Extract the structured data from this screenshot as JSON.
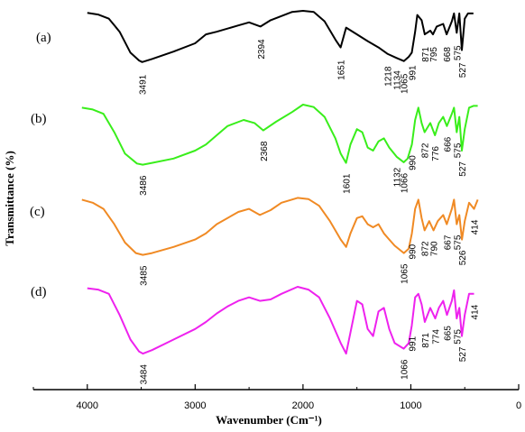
{
  "chart_data": {
    "type": "line",
    "xlabel": "Wavenumber (Cm⁻¹)",
    "ylabel": "Transmittance (%)",
    "xlim": [
      4500,
      0
    ],
    "x_ticks": [
      4000,
      3000,
      2000,
      1000,
      0
    ],
    "x_tick_labels": [
      "4000",
      "3000",
      "2000",
      "1000",
      "0"
    ],
    "grid": false,
    "legend": "none",
    "series": [
      {
        "name": "(a)",
        "color": "#000000",
        "offset": 0,
        "points": [
          [
            4000,
            0.96
          ],
          [
            3900,
            0.93
          ],
          [
            3800,
            0.85
          ],
          [
            3700,
            0.6
          ],
          [
            3600,
            0.2
          ],
          [
            3520,
            0.05
          ],
          [
            3491,
            0.02
          ],
          [
            3400,
            0.08
          ],
          [
            3200,
            0.22
          ],
          [
            3000,
            0.38
          ],
          [
            2900,
            0.55
          ],
          [
            2800,
            0.6
          ],
          [
            2600,
            0.72
          ],
          [
            2500,
            0.78
          ],
          [
            2394,
            0.7
          ],
          [
            2300,
            0.82
          ],
          [
            2100,
            0.98
          ],
          [
            2000,
            1.0
          ],
          [
            1900,
            0.98
          ],
          [
            1800,
            0.8
          ],
          [
            1700,
            0.45
          ],
          [
            1651,
            0.3
          ],
          [
            1600,
            0.68
          ],
          [
            1500,
            0.55
          ],
          [
            1400,
            0.42
          ],
          [
            1300,
            0.3
          ],
          [
            1218,
            0.18
          ],
          [
            1134,
            0.1
          ],
          [
            1065,
            0.04
          ],
          [
            1020,
            0.12
          ],
          [
            991,
            0.2
          ],
          [
            960,
            0.6
          ],
          [
            940,
            0.92
          ],
          [
            900,
            0.82
          ],
          [
            871,
            0.55
          ],
          [
            820,
            0.62
          ],
          [
            795,
            0.55
          ],
          [
            760,
            0.7
          ],
          [
            700,
            0.75
          ],
          [
            668,
            0.55
          ],
          [
            620,
            0.8
          ],
          [
            600,
            0.95
          ],
          [
            575,
            0.58
          ],
          [
            550,
            0.95
          ],
          [
            527,
            0.25
          ],
          [
            500,
            0.85
          ],
          [
            470,
            0.95
          ],
          [
            420,
            0.95
          ]
        ],
        "peaks": [
          {
            "label": "3491",
            "x": 3491
          },
          {
            "label": "2394",
            "x": 2394
          },
          {
            "label": "1651",
            "x": 1651
          },
          {
            "label": "1218",
            "x": 1218
          },
          {
            "label": "1134",
            "x": 1134
          },
          {
            "label": "1065",
            "x": 1065
          },
          {
            "label": "991",
            "x": 991
          },
          {
            "label": "871",
            "x": 871
          },
          {
            "label": "795",
            "x": 795
          },
          {
            "label": "668",
            "x": 668
          },
          {
            "label": "575",
            "x": 575
          },
          {
            "label": "527",
            "x": 527
          }
        ]
      },
      {
        "name": "(b)",
        "color": "#39ee1b",
        "offset": 1,
        "points": [
          [
            4050,
            0.95
          ],
          [
            3950,
            0.92
          ],
          [
            3850,
            0.85
          ],
          [
            3750,
            0.55
          ],
          [
            3650,
            0.2
          ],
          [
            3540,
            0.04
          ],
          [
            3486,
            0.02
          ],
          [
            3400,
            0.05
          ],
          [
            3200,
            0.12
          ],
          [
            3000,
            0.25
          ],
          [
            2900,
            0.35
          ],
          [
            2800,
            0.5
          ],
          [
            2700,
            0.65
          ],
          [
            2550,
            0.75
          ],
          [
            2450,
            0.7
          ],
          [
            2368,
            0.58
          ],
          [
            2250,
            0.72
          ],
          [
            2100,
            0.88
          ],
          [
            2000,
            1.0
          ],
          [
            1900,
            0.96
          ],
          [
            1800,
            0.8
          ],
          [
            1700,
            0.45
          ],
          [
            1650,
            0.2
          ],
          [
            1601,
            0.05
          ],
          [
            1560,
            0.35
          ],
          [
            1500,
            0.6
          ],
          [
            1450,
            0.55
          ],
          [
            1400,
            0.3
          ],
          [
            1350,
            0.25
          ],
          [
            1300,
            0.4
          ],
          [
            1250,
            0.45
          ],
          [
            1200,
            0.3
          ],
          [
            1132,
            0.15
          ],
          [
            1066,
            0.06
          ],
          [
            1030,
            0.12
          ],
          [
            990,
            0.35
          ],
          [
            960,
            0.75
          ],
          [
            930,
            0.95
          ],
          [
            900,
            0.7
          ],
          [
            872,
            0.55
          ],
          [
            820,
            0.7
          ],
          [
            776,
            0.5
          ],
          [
            740,
            0.7
          ],
          [
            700,
            0.8
          ],
          [
            666,
            0.65
          ],
          [
            620,
            0.85
          ],
          [
            600,
            0.95
          ],
          [
            575,
            0.55
          ],
          [
            550,
            0.8
          ],
          [
            527,
            0.25
          ],
          [
            500,
            0.6
          ],
          [
            460,
            0.95
          ],
          [
            420,
            0.98
          ],
          [
            380,
            0.98
          ]
        ],
        "peaks": [
          {
            "label": "3486",
            "x": 3486
          },
          {
            "label": "2368",
            "x": 2368
          },
          {
            "label": "1601",
            "x": 1601
          },
          {
            "label": "1132",
            "x": 1132
          },
          {
            "label": "1066",
            "x": 1066
          },
          {
            "label": "990",
            "x": 990
          },
          {
            "label": "872",
            "x": 872
          },
          {
            "label": "776",
            "x": 776
          },
          {
            "label": "666",
            "x": 666
          },
          {
            "label": "575",
            "x": 575
          },
          {
            "label": "527",
            "x": 527
          }
        ]
      },
      {
        "name": "(c)",
        "color": "#f08a24",
        "offset": 2,
        "points": [
          [
            4050,
            0.95
          ],
          [
            3950,
            0.9
          ],
          [
            3850,
            0.8
          ],
          [
            3750,
            0.55
          ],
          [
            3650,
            0.25
          ],
          [
            3550,
            0.08
          ],
          [
            3485,
            0.05
          ],
          [
            3400,
            0.08
          ],
          [
            3200,
            0.18
          ],
          [
            3000,
            0.3
          ],
          [
            2900,
            0.4
          ],
          [
            2800,
            0.55
          ],
          [
            2600,
            0.75
          ],
          [
            2500,
            0.8
          ],
          [
            2400,
            0.7
          ],
          [
            2300,
            0.78
          ],
          [
            2200,
            0.9
          ],
          [
            2050,
            0.98
          ],
          [
            1950,
            0.96
          ],
          [
            1850,
            0.85
          ],
          [
            1750,
            0.6
          ],
          [
            1650,
            0.3
          ],
          [
            1600,
            0.18
          ],
          [
            1560,
            0.4
          ],
          [
            1500,
            0.65
          ],
          [
            1450,
            0.68
          ],
          [
            1400,
            0.55
          ],
          [
            1350,
            0.5
          ],
          [
            1300,
            0.55
          ],
          [
            1250,
            0.4
          ],
          [
            1200,
            0.3
          ],
          [
            1150,
            0.2
          ],
          [
            1065,
            0.08
          ],
          [
            1020,
            0.15
          ],
          [
            990,
            0.4
          ],
          [
            960,
            0.8
          ],
          [
            930,
            0.95
          ],
          [
            900,
            0.65
          ],
          [
            872,
            0.45
          ],
          [
            830,
            0.6
          ],
          [
            790,
            0.45
          ],
          [
            750,
            0.6
          ],
          [
            700,
            0.7
          ],
          [
            667,
            0.55
          ],
          [
            620,
            0.8
          ],
          [
            600,
            0.95
          ],
          [
            575,
            0.55
          ],
          [
            550,
            0.7
          ],
          [
            526,
            0.3
          ],
          [
            500,
            0.6
          ],
          [
            460,
            0.9
          ],
          [
            414,
            0.8
          ],
          [
            380,
            0.95
          ]
        ],
        "peaks": [
          {
            "label": "3485",
            "x": 3485
          },
          {
            "label": "1065",
            "x": 1065
          },
          {
            "label": "990",
            "x": 990
          },
          {
            "label": "872",
            "x": 872
          },
          {
            "label": "790",
            "x": 790
          },
          {
            "label": "667",
            "x": 667
          },
          {
            "label": "575",
            "x": 575
          },
          {
            "label": "526",
            "x": 526
          },
          {
            "label": "414",
            "x": 414
          }
        ]
      },
      {
        "name": "(d)",
        "color": "#ee22ee",
        "offset": 3,
        "points": [
          [
            4000,
            0.98
          ],
          [
            3900,
            0.96
          ],
          [
            3800,
            0.9
          ],
          [
            3700,
            0.6
          ],
          [
            3600,
            0.25
          ],
          [
            3520,
            0.08
          ],
          [
            3484,
            0.05
          ],
          [
            3400,
            0.1
          ],
          [
            3200,
            0.25
          ],
          [
            3000,
            0.4
          ],
          [
            2900,
            0.5
          ],
          [
            2800,
            0.62
          ],
          [
            2700,
            0.72
          ],
          [
            2600,
            0.8
          ],
          [
            2500,
            0.85
          ],
          [
            2400,
            0.8
          ],
          [
            2300,
            0.82
          ],
          [
            2200,
            0.9
          ],
          [
            2050,
            1.0
          ],
          [
            1950,
            0.96
          ],
          [
            1850,
            0.85
          ],
          [
            1750,
            0.55
          ],
          [
            1650,
            0.2
          ],
          [
            1600,
            0.05
          ],
          [
            1560,
            0.35
          ],
          [
            1500,
            0.8
          ],
          [
            1450,
            0.75
          ],
          [
            1400,
            0.4
          ],
          [
            1350,
            0.3
          ],
          [
            1300,
            0.65
          ],
          [
            1250,
            0.7
          ],
          [
            1200,
            0.4
          ],
          [
            1150,
            0.2
          ],
          [
            1066,
            0.12
          ],
          [
            1020,
            0.2
          ],
          [
            991,
            0.45
          ],
          [
            960,
            0.85
          ],
          [
            930,
            0.9
          ],
          [
            900,
            0.75
          ],
          [
            871,
            0.5
          ],
          [
            820,
            0.7
          ],
          [
            774,
            0.55
          ],
          [
            740,
            0.7
          ],
          [
            700,
            0.8
          ],
          [
            665,
            0.6
          ],
          [
            620,
            0.8
          ],
          [
            600,
            0.95
          ],
          [
            575,
            0.55
          ],
          [
            550,
            0.7
          ],
          [
            527,
            0.3
          ],
          [
            500,
            0.6
          ],
          [
            460,
            0.9
          ],
          [
            414,
            0.9
          ]
        ],
        "peaks": [
          {
            "label": "3484",
            "x": 3484
          },
          {
            "label": "1066",
            "x": 1066
          },
          {
            "label": "991",
            "x": 991
          },
          {
            "label": "871",
            "x": 871
          },
          {
            "label": "774",
            "x": 774
          },
          {
            "label": "665",
            "x": 665
          },
          {
            "label": "575",
            "x": 575
          },
          {
            "label": "527",
            "x": 527
          },
          {
            "label": "414",
            "x": 414
          }
        ]
      }
    ]
  }
}
